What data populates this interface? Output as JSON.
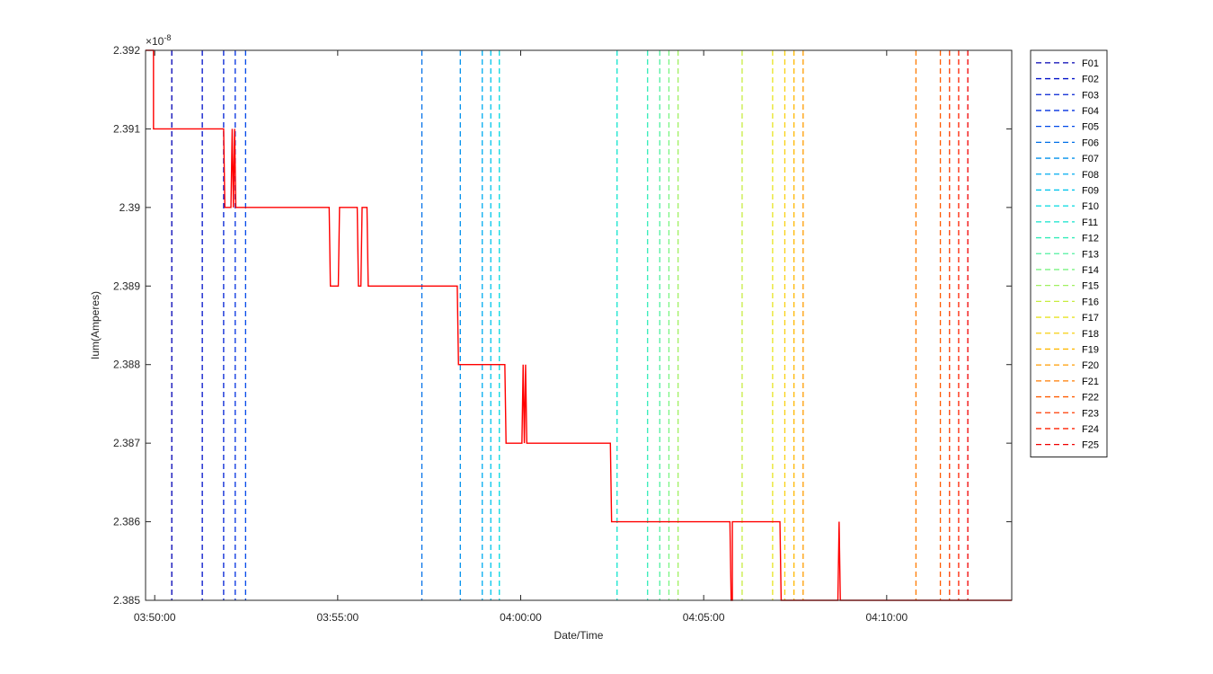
{
  "chart_data": {
    "type": "line",
    "title": "",
    "xlabel": "Date/Time",
    "ylabel": "Ium(Amperes)",
    "y_exponent_label": "×10",
    "y_exponent_power": "-8",
    "xlim": [
      "03:49:45",
      "04:13:25"
    ],
    "ylim": [
      2.385,
      2.392
    ],
    "x_ticks": [
      "03:50:00",
      "03:55:00",
      "04:00:00",
      "04:05:00",
      "04:10:00"
    ],
    "y_ticks": [
      "2.392",
      "2.391",
      "2.39",
      "2.389",
      "2.388",
      "2.387",
      "2.386",
      "2.385"
    ],
    "grid": false,
    "legend_position": "outside-right",
    "current_series": {
      "name": "",
      "color": "#ff0000",
      "points": [
        [
          "03:49:45",
          2.392
        ],
        [
          "03:49:58",
          2.392
        ],
        [
          "03:49:58",
          2.391
        ],
        [
          "03:51:53",
          2.391
        ],
        [
          "03:51:55",
          2.39
        ],
        [
          "03:52:05",
          2.39
        ],
        [
          "03:52:07",
          2.391
        ],
        [
          "03:52:09",
          2.39
        ],
        [
          "03:52:11",
          2.391
        ],
        [
          "03:52:13",
          2.39
        ],
        [
          "03:54:46",
          2.39
        ],
        [
          "03:54:48",
          2.389
        ],
        [
          "03:55:01",
          2.389
        ],
        [
          "03:55:03",
          2.39
        ],
        [
          "03:55:32",
          2.39
        ],
        [
          "03:55:34",
          2.389
        ],
        [
          "03:55:38",
          2.389
        ],
        [
          "03:55:40",
          2.39
        ],
        [
          "03:55:48",
          2.39
        ],
        [
          "03:55:50",
          2.389
        ],
        [
          "03:58:16",
          2.389
        ],
        [
          "03:58:18",
          2.388
        ],
        [
          "03:59:34",
          2.388
        ],
        [
          "03:59:36",
          2.387
        ],
        [
          "04:00:02",
          2.387
        ],
        [
          "04:00:04",
          2.388
        ],
        [
          "04:00:06",
          2.387
        ],
        [
          "04:00:08",
          2.388
        ],
        [
          "04:00:10",
          2.387
        ],
        [
          "04:02:27",
          2.387
        ],
        [
          "04:02:29",
          2.386
        ],
        [
          "04:05:43",
          2.386
        ],
        [
          "04:05:45",
          2.385
        ],
        [
          "04:05:47",
          2.385
        ],
        [
          "04:05:47",
          2.386
        ],
        [
          "04:07:05",
          2.386
        ],
        [
          "04:07:07",
          2.385
        ],
        [
          "04:08:40",
          2.385
        ],
        [
          "04:08:42",
          2.386
        ],
        [
          "04:08:44",
          2.385
        ],
        [
          "04:13:25",
          2.385
        ]
      ]
    },
    "markers": [
      {
        "name": "F01",
        "time": "03:50:28",
        "color": "#0000b4"
      },
      {
        "name": "F02",
        "time": "03:51:18",
        "color": "#0010c8"
      },
      {
        "name": "F03",
        "time": "03:51:53",
        "color": "#0020d4"
      },
      {
        "name": "F04",
        "time": "03:52:12",
        "color": "#0030e0"
      },
      {
        "name": "F05",
        "time": "03:52:29",
        "color": "#0048e8"
      },
      {
        "name": "F06",
        "time": "03:57:18",
        "color": "#0070e8"
      },
      {
        "name": "F07",
        "time": "03:58:21",
        "color": "#0090ec"
      },
      {
        "name": "F08",
        "time": "03:58:57",
        "color": "#00acf0"
      },
      {
        "name": "F09",
        "time": "03:59:11",
        "color": "#00c4ec"
      },
      {
        "name": "F10",
        "time": "03:59:25",
        "color": "#00d8e0"
      },
      {
        "name": "F11",
        "time": "04:02:38",
        "color": "#10e4cc"
      },
      {
        "name": "F12",
        "time": "04:03:28",
        "color": "#30ecb8"
      },
      {
        "name": "F13",
        "time": "04:03:48",
        "color": "#50f0a0"
      },
      {
        "name": "F14",
        "time": "04:04:03",
        "color": "#78f480"
      },
      {
        "name": "F15",
        "time": "04:04:18",
        "color": "#a0f060"
      },
      {
        "name": "F16",
        "time": "04:06:03",
        "color": "#c8ec40"
      },
      {
        "name": "F17",
        "time": "04:06:53",
        "color": "#e8e420"
      },
      {
        "name": "F18",
        "time": "04:07:13",
        "color": "#f8d010"
      },
      {
        "name": "F19",
        "time": "04:07:28",
        "color": "#ffb800"
      },
      {
        "name": "F20",
        "time": "04:07:43",
        "color": "#ff9c00"
      },
      {
        "name": "F21",
        "time": "04:10:48",
        "color": "#ff7c00"
      },
      {
        "name": "F22",
        "time": "04:11:28",
        "color": "#ff5c00"
      },
      {
        "name": "F23",
        "time": "04:11:43",
        "color": "#ff3c00"
      },
      {
        "name": "F24",
        "time": "04:11:58",
        "color": "#ff2000"
      },
      {
        "name": "F25",
        "time": "04:12:13",
        "color": "#f00000"
      }
    ]
  }
}
